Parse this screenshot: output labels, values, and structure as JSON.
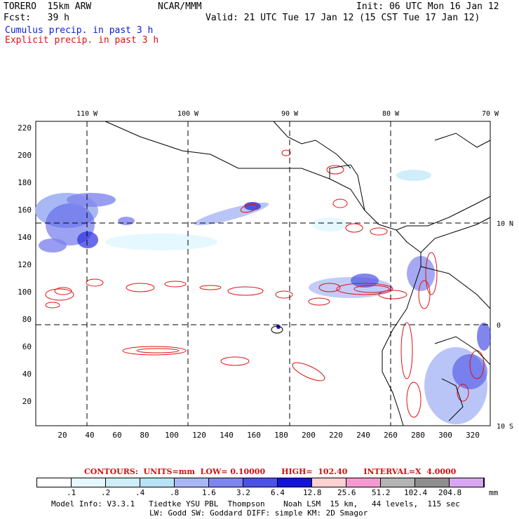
{
  "header": {
    "model": "TORERO  15km ARW",
    "org": "NCAR/MMM",
    "init": "Init: 06 UTC Mon 16 Jan 12",
    "fcst": "Fcst:   39 h",
    "valid": "Valid: 21 UTC Tue 17 Jan 12 (15 CST Tue 17 Jan 12)",
    "cumulus": "Cumulus precip. in past 3 h",
    "explicit": "Explicit precip. in past 3 h"
  },
  "map": {
    "lon_labels": [
      "110 W",
      "100 W",
      "90 W",
      "80 W",
      "70 W"
    ],
    "lat_labels": [
      "10 N",
      "0",
      "10 S"
    ],
    "y_ticks": [
      "220",
      "200",
      "180",
      "160",
      "140",
      "120",
      "100",
      "80",
      "60",
      "40",
      "20"
    ],
    "x_ticks": [
      "20",
      "40",
      "60",
      "80",
      "100",
      "120",
      "140",
      "160",
      "180",
      "200",
      "220",
      "240",
      "260",
      "280",
      "300",
      "320"
    ]
  },
  "legend": {
    "contours_text": "CONTOURS:  UNITS=mm  LOW= 0.10000      HIGH=  102.40      INTERVAL=X  4.0000",
    "unit": "mm",
    "bins": [
      ".1",
      ".2",
      ".4",
      ".8",
      "1.6",
      "3.2",
      "6.4",
      "12.8",
      "25.6",
      "51.2",
      "102.4",
      "204.8"
    ],
    "colors": [
      "#ffffff",
      "#e6f8ff",
      "#cfeefa",
      "#b8e2f6",
      "#a9b6f5",
      "#7f85ee",
      "#4b52e6",
      "#1414d8",
      "#ffd1d1",
      "#f59ad0",
      "#b4b4b4",
      "#8e8e8e",
      "#d8a6f2"
    ]
  },
  "footer": {
    "line1": "Model Info: V3.3.1   Tiedtke YSU PBL  Thompson    Noah LSM  15 km,   44 levels,  115 sec",
    "line2": "LW: Godd SW: Goddard DIFF: simple KM: 2D Smagor"
  }
}
